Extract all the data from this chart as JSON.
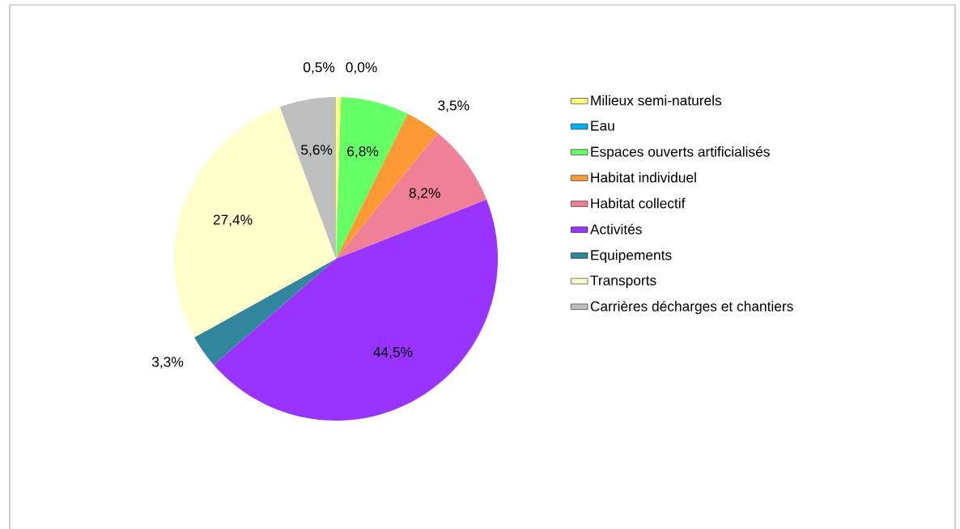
{
  "chart_data": {
    "type": "pie",
    "categories": [
      "Milieux semi-naturels",
      "Eau",
      "Espaces ouverts artificialisés",
      "Habitat individuel",
      "Habitat collectif",
      "Activités",
      "Equipements",
      "Transports",
      "Carrières décharges et chantiers"
    ],
    "values": [
      0.5,
      0.0,
      6.8,
      3.5,
      8.2,
      44.5,
      3.3,
      27.4,
      5.6
    ],
    "value_labels": [
      "0,5%",
      "0,0%",
      "6,8%",
      "3,5%",
      "8,2%",
      "44,5%",
      "3,3%",
      "27,4%",
      "5,6%"
    ],
    "colors": [
      "#ffff80",
      "#00b0f0",
      "#66ff66",
      "#ff9933",
      "#f08098",
      "#9933ff",
      "#31859c",
      "#ffffcc",
      "#bfbfbf"
    ],
    "legend": "right"
  }
}
